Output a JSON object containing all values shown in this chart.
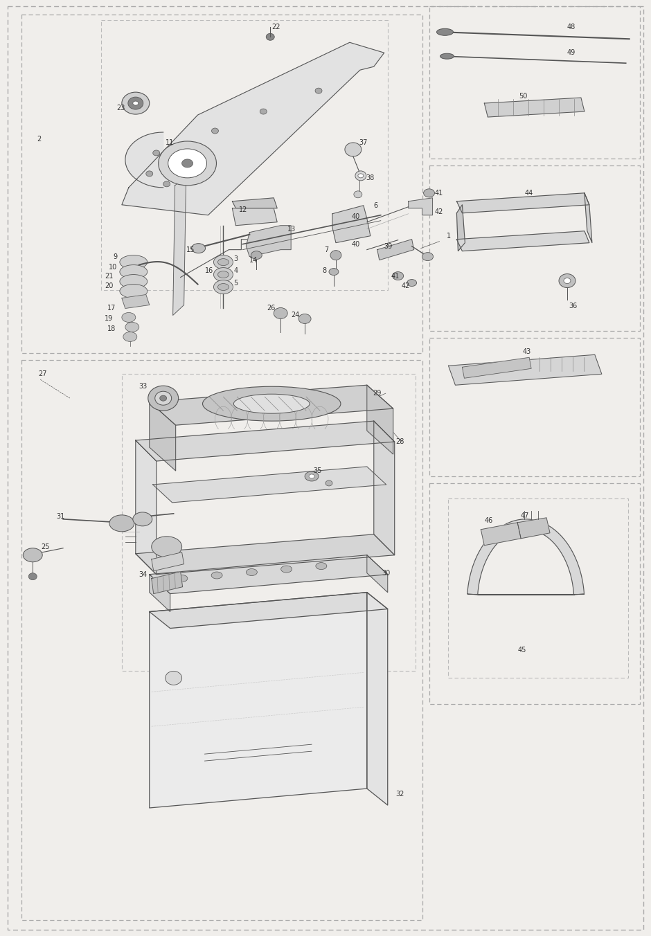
{
  "fig_width": 9.4,
  "fig_height": 13.52,
  "dpi": 100,
  "bg_color": "#f0eeeb",
  "line_color": "#555555",
  "dash_color": "#999999",
  "text_color": "#333333",
  "label_fontsize": 7.0
}
